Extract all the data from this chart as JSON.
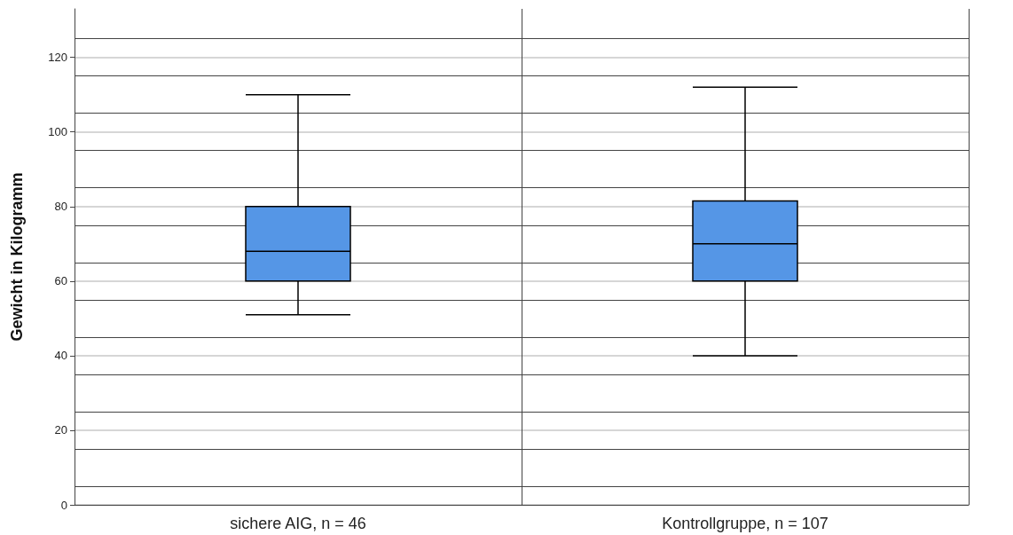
{
  "chart_data": {
    "type": "box",
    "ylabel": "Gewicht in Kilogramm",
    "categories": [
      "sichere AIG, n = 46",
      "Kontrollgruppe, n = 107"
    ],
    "boxes": [
      {
        "low": 51,
        "q1": 60,
        "median": 68,
        "q3": 80,
        "high": 110
      },
      {
        "low": 40,
        "q1": 60,
        "median": 70,
        "q3": 81.5,
        "high": 112
      }
    ],
    "color": "#5596e6",
    "ylim": [
      0,
      133
    ],
    "yticks": [
      0,
      20,
      40,
      60,
      80,
      100,
      120
    ],
    "grid": true
  }
}
